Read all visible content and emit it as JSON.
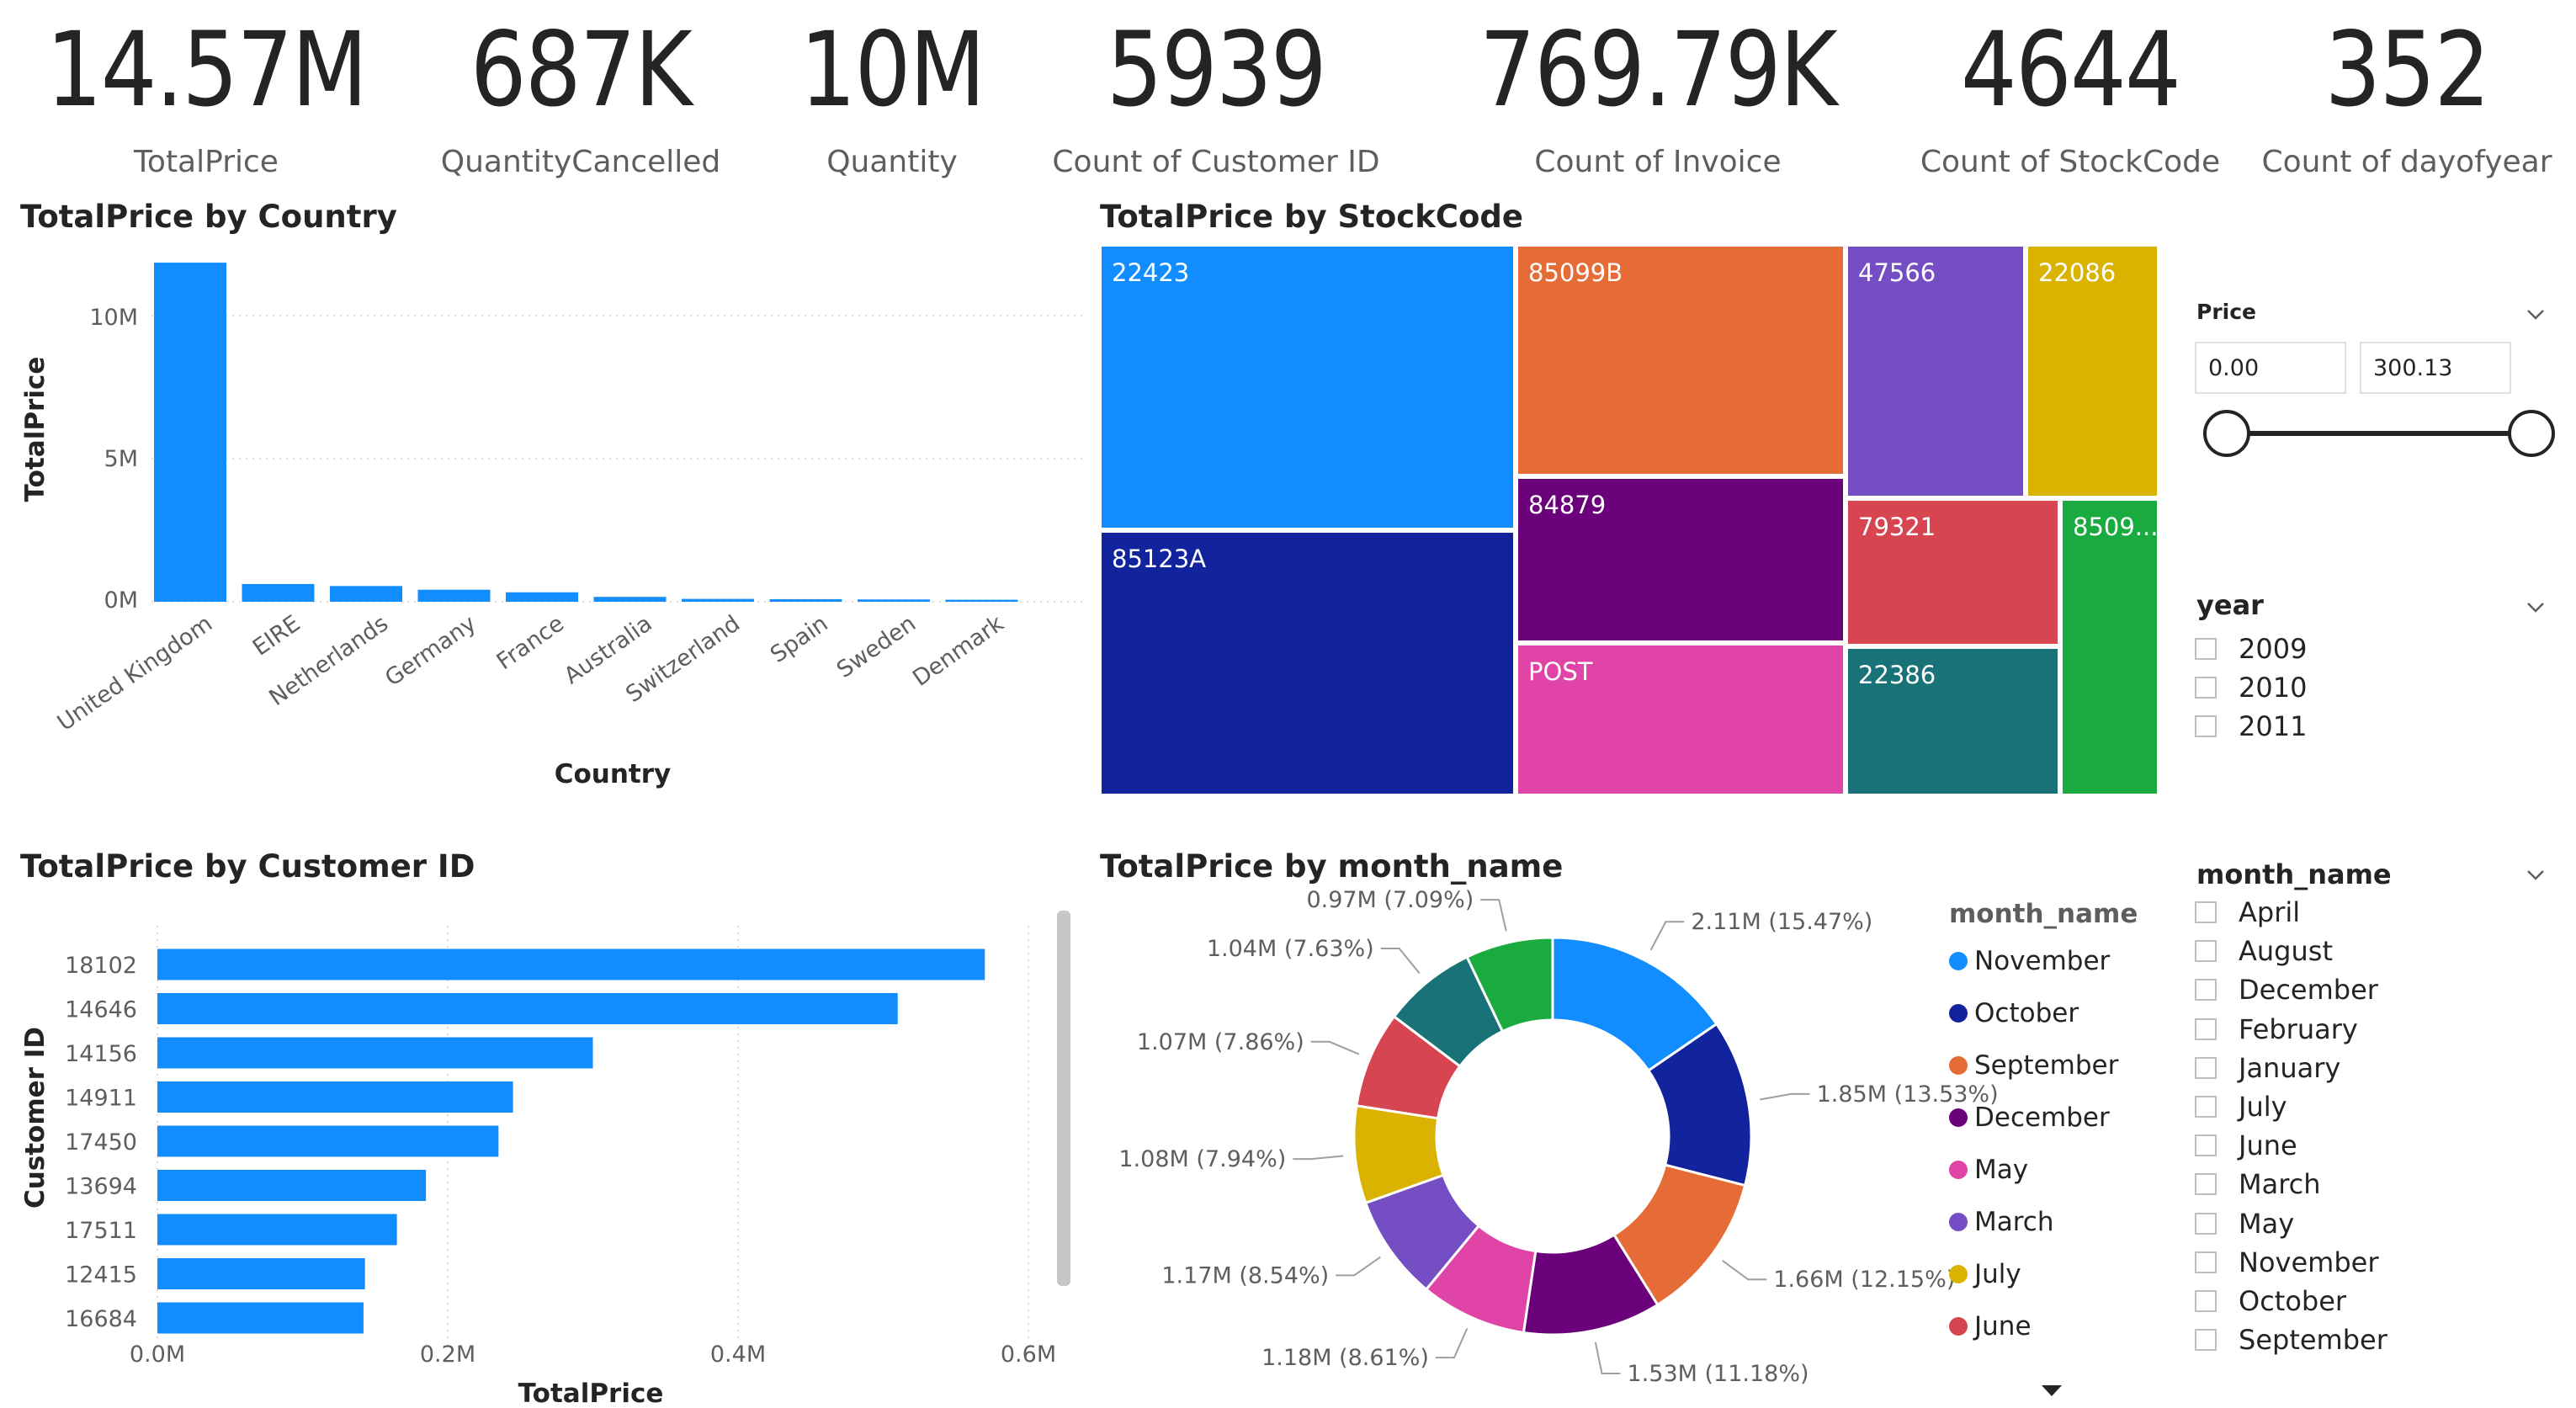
{
  "kpis": [
    {
      "value": "14.57M",
      "label": "TotalPrice"
    },
    {
      "value": "687K",
      "label": "QuantityCancelled"
    },
    {
      "value": "10M",
      "label": "Quantity"
    },
    {
      "value": "5939",
      "label": "Count of Customer ID"
    },
    {
      "value": "769.79K",
      "label": "Count of Invoice"
    },
    {
      "value": "4644",
      "label": "Count of StockCode"
    },
    {
      "value": "352",
      "label": "Count of dayofyear"
    }
  ],
  "country_chart": {
    "title": "TotalPrice by Country",
    "ylabel": "TotalPrice",
    "xlabel": "Country",
    "yticks": [
      "0M",
      "5M",
      "10M"
    ]
  },
  "stockcode_chart": {
    "title": "TotalPrice by StockCode",
    "tiles": [
      {
        "label": "22423",
        "color": "#118DFF"
      },
      {
        "label": "85123A",
        "color": "#12239E"
      },
      {
        "label": "85099B",
        "color": "#E66C37"
      },
      {
        "label": "84879",
        "color": "#6B007B"
      },
      {
        "label": "POST",
        "color": "#E044A7"
      },
      {
        "label": "47566",
        "color": "#744EC2"
      },
      {
        "label": "22086",
        "color": "#D9B300"
      },
      {
        "label": "79321",
        "color": "#D64550"
      },
      {
        "label": "22386",
        "color": "#197278"
      },
      {
        "label": "8509...",
        "color": "#1AAB40"
      }
    ]
  },
  "customer_chart": {
    "title": "TotalPrice by Customer ID",
    "ylabel": "Customer ID",
    "xlabel": "TotalPrice",
    "xticks": [
      "0.0M",
      "0.2M",
      "0.4M",
      "0.6M"
    ]
  },
  "month_chart": {
    "title": "TotalPrice by month_name",
    "legend_title": "month_name",
    "legend_items": [
      {
        "label": "November",
        "color": "#118DFF"
      },
      {
        "label": "October",
        "color": "#12239E"
      },
      {
        "label": "September",
        "color": "#E66C37"
      },
      {
        "label": "December",
        "color": "#6B007B"
      },
      {
        "label": "May",
        "color": "#E044A7"
      },
      {
        "label": "March",
        "color": "#744EC2"
      },
      {
        "label": "July",
        "color": "#D9B300"
      },
      {
        "label": "June",
        "color": "#D64550"
      }
    ]
  },
  "price_slicer": {
    "title": "Price",
    "min_value": "0.00",
    "max_value": "300.13",
    "min": 0.0,
    "max": 300.13
  },
  "year_slicer": {
    "title": "year",
    "options": [
      "2009",
      "2010",
      "2011"
    ]
  },
  "month_slicer": {
    "title": "month_name",
    "options": [
      "April",
      "August",
      "December",
      "February",
      "January",
      "July",
      "June",
      "March",
      "May",
      "November",
      "October",
      "September"
    ]
  },
  "chart_data": [
    {
      "type": "bar",
      "title": "TotalPrice by Country",
      "xlabel": "Country",
      "ylabel": "TotalPrice",
      "categories": [
        "United Kingdom",
        "EIRE",
        "Netherlands",
        "Germany",
        "France",
        "Australia",
        "Switzerland",
        "Spain",
        "Sweden",
        "Denmark"
      ],
      "values": [
        11.85,
        0.62,
        0.55,
        0.42,
        0.33,
        0.17,
        0.1,
        0.09,
        0.08,
        0.07
      ],
      "unit": "M",
      "ylim": [
        0,
        12
      ]
    },
    {
      "type": "bar",
      "orientation": "horizontal",
      "title": "TotalPrice by Customer ID",
      "xlabel": "TotalPrice",
      "ylabel": "Customer ID",
      "categories": [
        "18102",
        "14646",
        "14156",
        "14911",
        "17450",
        "13694",
        "17511",
        "12415",
        "16684"
      ],
      "values": [
        0.57,
        0.51,
        0.3,
        0.245,
        0.235,
        0.185,
        0.165,
        0.143,
        0.142
      ],
      "unit": "M",
      "xlim": [
        0,
        0.6
      ]
    },
    {
      "type": "pie",
      "title": "TotalPrice by month_name",
      "labels": [
        "November",
        "October",
        "September",
        "December",
        "May",
        "March",
        "July",
        "June",
        "",
        ""
      ],
      "values": [
        2.11,
        1.85,
        1.66,
        1.53,
        1.18,
        1.17,
        1.08,
        1.07,
        1.04,
        0.97
      ],
      "percentages": [
        15.47,
        13.53,
        12.15,
        11.18,
        8.61,
        8.54,
        7.94,
        7.86,
        7.63,
        7.09
      ],
      "data_labels": [
        "2.11M (15.47%)",
        "1.85M (13.53%)",
        "1.66M (12.15%)",
        "1.53M (11.18%)",
        "1.18M (8.61%)",
        "1.17M (8.54%)",
        "1.08M (7.94%)",
        "1.07M (7.86%)",
        "1.04M (7.63%)",
        "0.97M (7.09%)"
      ],
      "colors": [
        "#118DFF",
        "#12239E",
        "#E66C37",
        "#6B007B",
        "#E044A7",
        "#744EC2",
        "#D9B300",
        "#D64550",
        "#197278",
        "#1AAB40"
      ],
      "donut": true,
      "legend": "right"
    }
  ]
}
